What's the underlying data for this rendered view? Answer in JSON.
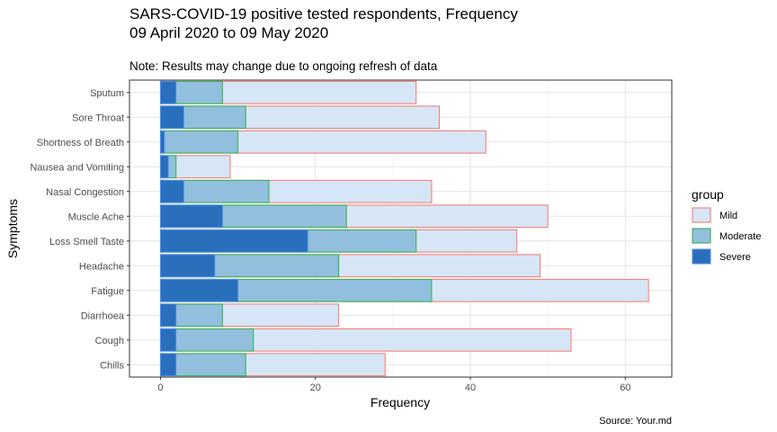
{
  "chart_data": {
    "type": "bar",
    "orientation": "horizontal",
    "stacked": false,
    "title": "SARS-COVID-19 positive tested respondents, Frequency",
    "subtitle": "09 April 2020 to 09 May 2020",
    "note": "Note: Results may change due to ongoing refresh of data",
    "xlabel": "Frequency",
    "ylabel": "Symptoms",
    "caption": "Source: Your.md",
    "xlim": [
      -4,
      66
    ],
    "xticks": [
      0,
      20,
      40,
      60
    ],
    "grid": true,
    "legend_title": "group",
    "legend_position": "right",
    "categories": [
      "Sputum",
      "Sore Throat",
      "Shortness of Breath",
      "Nausea and Vomiting",
      "Nasal Congestion",
      "Muscle Ache",
      "Loss Smell Taste",
      "Headache",
      "Fatigue",
      "Diarrhoea",
      "Cough",
      "Chills"
    ],
    "series": [
      {
        "name": "Mild",
        "fill": "#d6e6f6",
        "stroke": "#f8766d",
        "values": [
          33,
          36,
          42,
          9,
          35,
          50,
          46,
          49,
          63,
          23,
          53,
          29
        ]
      },
      {
        "name": "Moderate",
        "fill": "#92bfdd",
        "stroke": "#2eb34c",
        "values": [
          8,
          11,
          10,
          2,
          14,
          24,
          33,
          23,
          35,
          8,
          12,
          11
        ]
      },
      {
        "name": "Severe",
        "fill": "#2a6fbb",
        "stroke": "#4d8fee",
        "values": [
          2,
          3,
          0.5,
          1,
          3,
          8,
          19,
          7,
          10,
          2,
          2,
          2
        ]
      }
    ]
  }
}
